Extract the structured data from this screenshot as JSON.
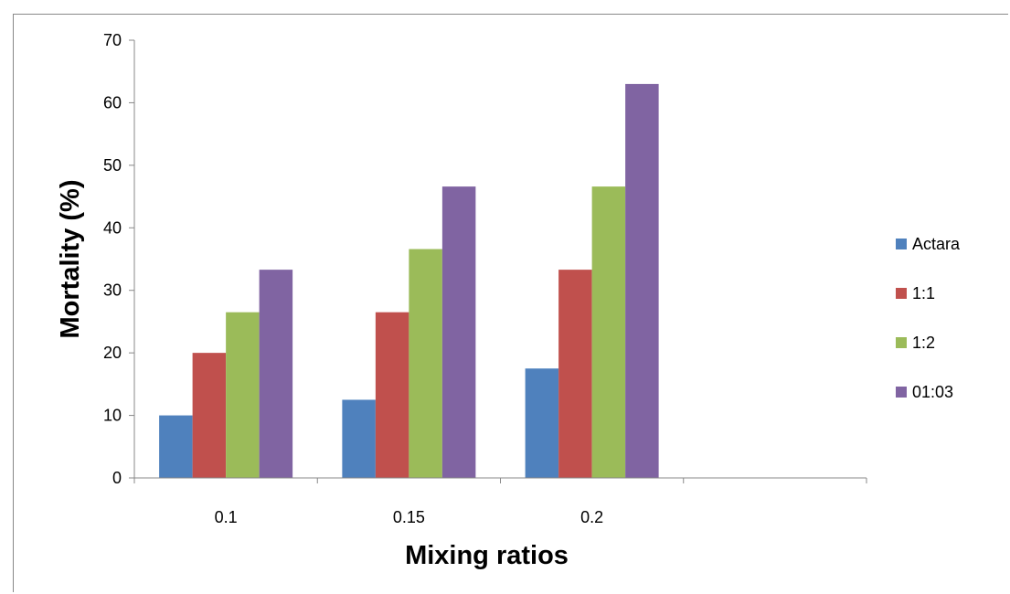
{
  "chart_data": {
    "type": "bar",
    "title": "",
    "xlabel": "Mixing ratios",
    "ylabel": "Mortality (%)",
    "categories": [
      "0.1",
      "0.15",
      "0.2",
      ""
    ],
    "ylim": [
      0,
      70
    ],
    "yticks": [
      0,
      10,
      20,
      30,
      40,
      50,
      60,
      70
    ],
    "grid": false,
    "legend_position": "right",
    "series": [
      {
        "name": "Actara",
        "color": "#4F81BD",
        "values": [
          10,
          12.5,
          17.5,
          null
        ]
      },
      {
        "name": "1:1",
        "color": "#C0504D",
        "values": [
          20,
          26.5,
          33.3,
          null
        ]
      },
      {
        "name": "1:2",
        "color": "#9BBB59",
        "values": [
          26.5,
          36.6,
          46.6,
          null
        ]
      },
      {
        "name": "01:03",
        "color": "#8064A2",
        "values": [
          33.3,
          46.6,
          63,
          null
        ]
      }
    ]
  }
}
